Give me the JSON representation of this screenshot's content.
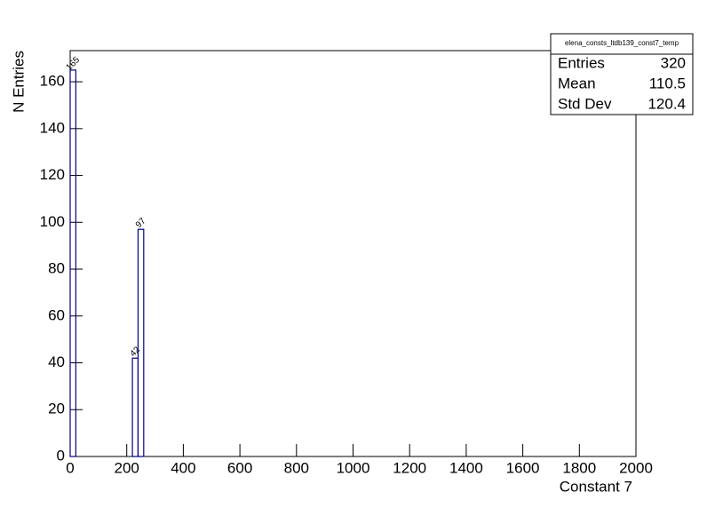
{
  "chart_data": {
    "type": "histogram",
    "bins": [
      0,
      20,
      220,
      240,
      260,
      2000
    ],
    "values": [
      165,
      0,
      42,
      97,
      0
    ],
    "color": "#000080",
    "xlabel": "Constant 7",
    "ylabel": "N Entries",
    "xlim": [
      0,
      2000
    ],
    "xticks": [
      0,
      200,
      400,
      600,
      800,
      1000,
      1200,
      1400,
      1600,
      1800,
      2000
    ],
    "ylim": [
      0,
      173.3
    ],
    "yticks": [
      0,
      20,
      40,
      60,
      80,
      100,
      120,
      140,
      160
    ],
    "stats": {
      "title": "elena_consts_ltdb139_const7_temp",
      "rows": [
        [
          "Entries",
          320
        ],
        [
          "Mean",
          110.5
        ],
        [
          "Std Dev",
          120.4
        ]
      ]
    }
  }
}
